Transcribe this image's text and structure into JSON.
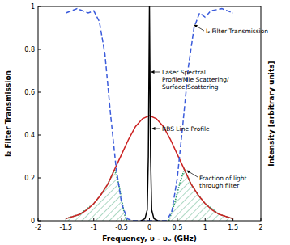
{
  "chart_data": {
    "type": "line",
    "x_label": "Frequency, υ - υₒ (GHz)",
    "y_label": "I₂ Filter Transmission",
    "y2_label": "Intensity [arbitrary units]",
    "xlim": [
      -2,
      2
    ],
    "xticks": [
      -2,
      -1.5,
      -1,
      -0.5,
      0,
      0.5,
      1,
      1.5,
      2
    ],
    "ylim": [
      0,
      1
    ],
    "yticks": [
      0,
      0.2,
      0.4,
      0.6,
      0.8,
      1
    ],
    "series": [
      {
        "name": "Fraction of light through filter",
        "type": "area",
        "color": "#2e9e6a",
        "line_style": "dotted",
        "x": [
          -1.5,
          -1.25,
          -1,
          -0.875,
          -0.75,
          -0.625,
          -0.55,
          -0.5,
          -0.45,
          -0.4,
          0,
          0.35,
          0.45,
          0.55,
          0.625,
          0.75,
          0.875,
          1,
          1.25,
          1.5
        ],
        "values": [
          0.01,
          0.03,
          0.08,
          0.12,
          0.17,
          0.24,
          0.17,
          0.1,
          0.03,
          0,
          null,
          0,
          0.08,
          0.18,
          0.24,
          0.17,
          0.12,
          0.08,
          0.03,
          0.01
        ]
      },
      {
        "name": "RBS Line Profile",
        "type": "line",
        "color": "#cc2222",
        "line_style": "solid",
        "x": [
          -1.5,
          -1.375,
          -1.25,
          -1.125,
          -1,
          -0.875,
          -0.75,
          -0.625,
          -0.5,
          -0.375,
          -0.25,
          -0.125,
          0,
          0.125,
          0.25,
          0.375,
          0.5,
          0.625,
          0.75,
          0.875,
          1,
          1.125,
          1.25,
          1.375,
          1.5
        ],
        "values": [
          0.01,
          0.02,
          0.03,
          0.05,
          0.08,
          0.12,
          0.17,
          0.24,
          0.31,
          0.38,
          0.44,
          0.476,
          0.49,
          0.476,
          0.44,
          0.38,
          0.31,
          0.24,
          0.17,
          0.12,
          0.08,
          0.05,
          0.03,
          0.02,
          0.01
        ]
      },
      {
        "name": "I₂ Filter Transmission",
        "type": "line",
        "color": "#3b5bdb",
        "line_style": "dashed",
        "x": [
          -1.5,
          -1.3,
          -1.1,
          -1,
          -0.9,
          -0.8,
          -0.7,
          -0.6,
          -0.5,
          -0.4,
          -0.3,
          0.3,
          0.4,
          0.5,
          0.6,
          0.7,
          0.8,
          0.9,
          1,
          1.1,
          1.3,
          1.5
        ],
        "values": [
          0.97,
          0.99,
          0.97,
          0.98,
          0.93,
          0.78,
          0.5,
          0.25,
          0.08,
          0.01,
          0,
          0,
          0.04,
          0.2,
          0.45,
          0.72,
          0.9,
          0.97,
          0.95,
          0.98,
          0.99,
          0.97
        ]
      },
      {
        "name": "Laser Spectral Profile/Mie Scattering/ Surface Scattering",
        "type": "line",
        "color": "#000000",
        "line_style": "solid",
        "x": [
          -0.15,
          -0.08,
          -0.04,
          -0.02,
          0,
          0.02,
          0.04,
          0.08,
          0.15
        ],
        "values": [
          0,
          0.01,
          0.05,
          0.3,
          1,
          0.3,
          0.05,
          0.01,
          0
        ]
      }
    ]
  }
}
